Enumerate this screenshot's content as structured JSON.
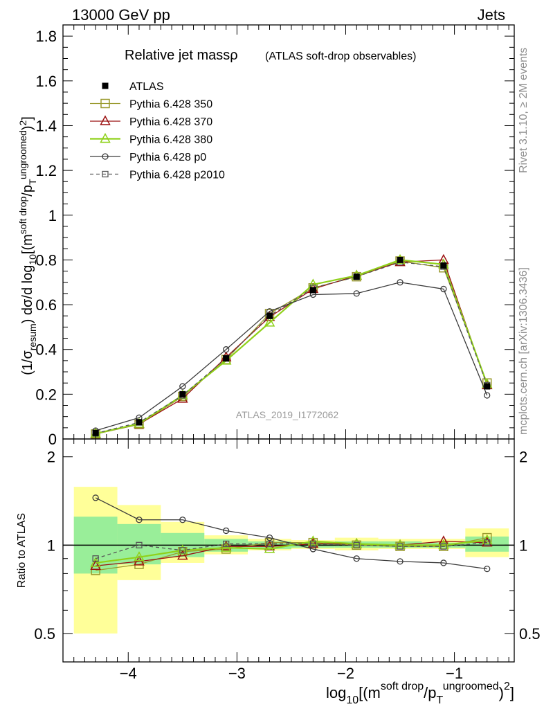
{
  "header": {
    "energy_label": "13000 GeV pp",
    "process_label": "Jets"
  },
  "side": {
    "rivet_label": "Rivet 3.1.10, ≥ 2M events",
    "source_label": "mcplots.cern.ch [arXiv:1306.3436]"
  },
  "chart_data": [
    {
      "type": "line",
      "title": "Relative jet massρ",
      "subtitle": "(ATLAS soft-drop observables)",
      "analysis_label": "ATLAS_2019_I1772062",
      "ylabel": "(1/σresum) dσ/d log10[(m^soft drop/pT^ungroomed)^2]",
      "xlabel": "log10[(m^soft drop/pT^ungroomed)^2]",
      "xlim": [
        -4.6,
        -0.45
      ],
      "ylim": [
        0,
        1.85
      ],
      "x_ticks": [
        "−4",
        "−3",
        "−2",
        "−1"
      ],
      "y_ticks": [
        "0",
        "0.2",
        "0.4",
        "0.6",
        "0.8",
        "1",
        "1.2",
        "1.4",
        "1.6",
        "1.8"
      ],
      "legend_position": "top-left",
      "x": [
        -4.3,
        -3.9,
        -3.5,
        -3.1,
        -2.7,
        -2.3,
        -1.9,
        -1.5,
        -1.1,
        -0.7
      ],
      "series": [
        {
          "name": "ATLAS",
          "color": "#000000",
          "marker": "filled-square",
          "values": [
            0.027,
            0.075,
            0.2,
            0.36,
            0.55,
            0.665,
            0.725,
            0.8,
            0.775,
            0.235
          ]
        },
        {
          "name": "Pythia 6.428 350",
          "color": "#9a9a2e",
          "marker": "open-square",
          "values": [
            0.022,
            0.065,
            0.19,
            0.355,
            0.56,
            0.675,
            0.725,
            0.795,
            0.765,
            0.25
          ]
        },
        {
          "name": "Pythia 6.428 370",
          "color": "#9b1111",
          "marker": "open-triangle",
          "values": [
            0.023,
            0.066,
            0.18,
            0.365,
            0.545,
            0.67,
            0.73,
            0.79,
            0.8,
            0.24
          ]
        },
        {
          "name": "Pythia 6.428 380",
          "color": "#8fd11a",
          "marker": "open-triangle",
          "values": [
            0.024,
            0.068,
            0.195,
            0.35,
            0.52,
            0.69,
            0.73,
            0.8,
            0.78,
            0.245
          ]
        },
        {
          "name": "Pythia 6.428 p0",
          "color": "#3a3a3a",
          "marker": "open-circle",
          "values": [
            0.037,
            0.095,
            0.235,
            0.4,
            0.57,
            0.645,
            0.65,
            0.7,
            0.67,
            0.195
          ]
        },
        {
          "name": "Pythia 6.428 p2010",
          "color": "#555555",
          "marker": "open-small-square",
          "dashed": true,
          "values": [
            0.025,
            0.074,
            0.195,
            0.36,
            0.55,
            0.675,
            0.725,
            0.79,
            0.77,
            0.24
          ]
        }
      ]
    },
    {
      "type": "line",
      "ylabel": "Ratio to ATLAS",
      "y_scale": "log",
      "ylim": [
        0.4,
        2.3
      ],
      "y_ticks": [
        "0.5",
        "1",
        "2"
      ],
      "reference_line": 1,
      "bands": {
        "x_edges": [
          -4.5,
          -4.1,
          -3.7,
          -3.3,
          -2.9,
          -2.5,
          -2.1,
          -1.7,
          -1.3,
          -0.9,
          -0.5
        ],
        "inner": [
          [
            0.8,
            1.25
          ],
          [
            0.86,
            1.18
          ],
          [
            0.91,
            1.1
          ],
          [
            0.95,
            1.05
          ],
          [
            0.97,
            1.03
          ],
          [
            0.98,
            1.02
          ],
          [
            0.98,
            1.03
          ],
          [
            0.98,
            1.03
          ],
          [
            0.98,
            1.02
          ],
          [
            0.95,
            1.07
          ]
        ],
        "outer": [
          [
            0.5,
            1.58
          ],
          [
            0.76,
            1.37
          ],
          [
            0.87,
            1.2
          ],
          [
            0.93,
            1.08
          ],
          [
            0.96,
            1.05
          ],
          [
            0.97,
            1.04
          ],
          [
            0.96,
            1.06
          ],
          [
            0.97,
            1.05
          ],
          [
            0.97,
            1.05
          ],
          [
            0.91,
            1.14
          ]
        ]
      },
      "x": [
        -4.3,
        -3.9,
        -3.5,
        -3.1,
        -2.7,
        -2.3,
        -1.9,
        -1.5,
        -1.1,
        -0.7
      ],
      "series": [
        {
          "name": "Pythia 6.428 350",
          "color": "#9a9a2e",
          "marker": "open-square",
          "values": [
            0.82,
            0.86,
            0.95,
            0.97,
            1.02,
            1.02,
            1.0,
            0.99,
            0.99,
            1.06
          ]
        },
        {
          "name": "Pythia 6.428 370",
          "color": "#9b1111",
          "marker": "open-triangle",
          "values": [
            0.85,
            0.88,
            0.92,
            0.99,
            0.99,
            1.01,
            1.01,
            1.0,
            1.03,
            1.02
          ]
        },
        {
          "name": "Pythia 6.428 380",
          "color": "#8fd11a",
          "marker": "open-triangle",
          "values": [
            0.87,
            0.91,
            0.96,
            0.98,
            0.97,
            1.03,
            1.01,
            1.0,
            1.0,
            1.04
          ]
        },
        {
          "name": "Pythia 6.428 p0",
          "color": "#3a3a3a",
          "marker": "open-circle",
          "values": [
            1.45,
            1.22,
            1.22,
            1.12,
            1.06,
            0.97,
            0.9,
            0.88,
            0.87,
            0.83
          ]
        },
        {
          "name": "Pythia 6.428 p2010",
          "color": "#555555",
          "marker": "open-small-square",
          "dashed": true,
          "values": [
            0.9,
            1.0,
            0.96,
            1.01,
            1.01,
            1.01,
            1.0,
            0.99,
            0.99,
            1.02
          ]
        }
      ]
    }
  ]
}
